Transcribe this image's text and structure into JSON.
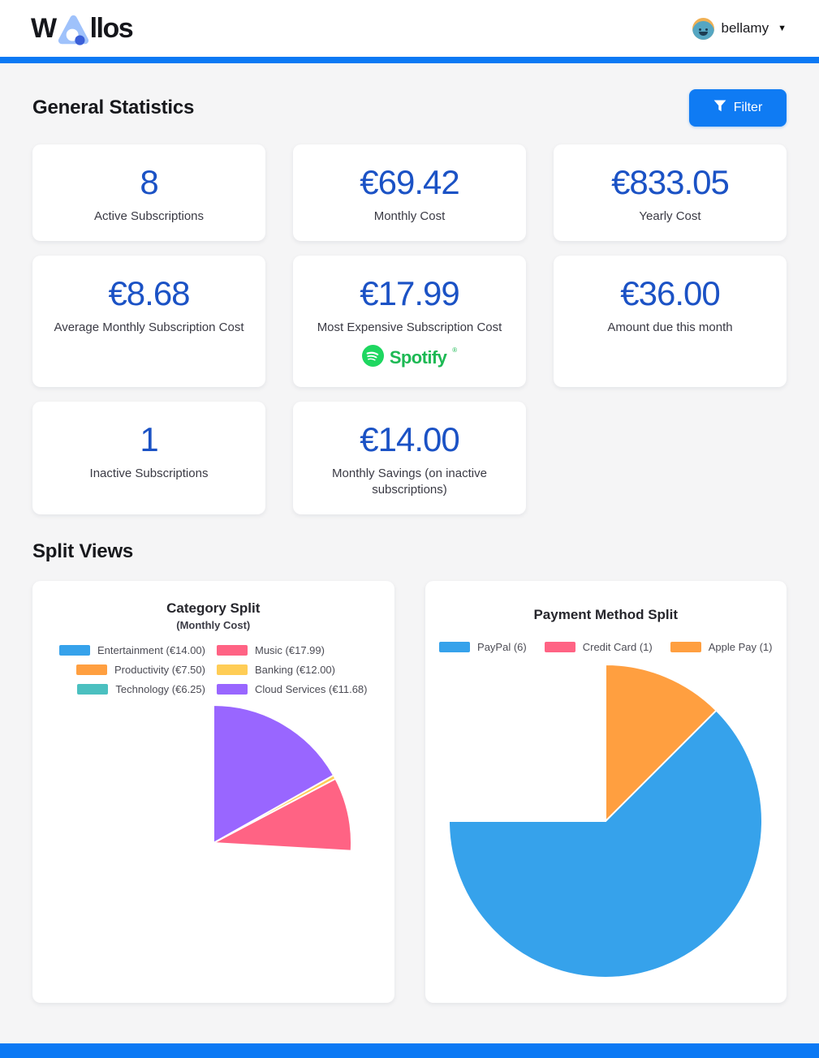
{
  "header": {
    "logo_w": "W",
    "logo_rest": "llos",
    "username": "bellamy",
    "dropdown_icon": "▼"
  },
  "icons": {
    "filter_icon": "funnel-icon",
    "logo_icon": "rounded-triangle-with-dot",
    "avatar_icon": "smiley-face-avatar",
    "spotify_icon": "spotify-circle-logo"
  },
  "colors": {
    "accent_blue": "#0b79f4",
    "stat_value_blue": "#1b52c5",
    "spotify_green": "#1ed760",
    "page_background": "#f5f5f6",
    "card_background": "#ffffff"
  },
  "general_statistics": {
    "title": "General Statistics",
    "filter_label": "Filter",
    "cards": [
      {
        "value": "8",
        "label": "Active Subscriptions"
      },
      {
        "value": "€69.42",
        "label": "Monthly Cost"
      },
      {
        "value": "€833.05",
        "label": "Yearly Cost"
      },
      {
        "value": "€8.68",
        "label": "Average Monthly Subscription Cost"
      },
      {
        "value": "€17.99",
        "label": "Most Expensive Subscription Cost",
        "logo": "Spotify",
        "logo_mark": "®"
      },
      {
        "value": "€36.00",
        "label": "Amount due this month"
      },
      {
        "value": "1",
        "label": "Inactive Subscriptions"
      },
      {
        "value": "€14.00",
        "label": "Monthly Savings (on inactive subscriptions)"
      }
    ]
  },
  "split_views": {
    "title": "Split Views"
  },
  "chart_data": [
    {
      "type": "pie",
      "title": "Category Split",
      "subtitle": "(Monthly Cost)",
      "categories": [
        "Entertainment",
        "Music",
        "Productivity",
        "Banking",
        "Technology",
        "Cloud Services"
      ],
      "values": [
        14.0,
        17.99,
        7.5,
        12.0,
        6.25,
        11.68
      ],
      "labels": [
        "Entertainment (€14.00)",
        "Music (€17.99)",
        "Productivity (€7.50)",
        "Banking (€12.00)",
        "Technology (€6.25)",
        "Cloud Services (€11.68)"
      ],
      "colors": [
        "#36a2eb",
        "#ff6384",
        "#ff9f40",
        "#ffcd56",
        "#4bc0c0",
        "#9966ff"
      ],
      "start_angle_deg": 0,
      "direction": "clockwise",
      "legend_position": "top"
    },
    {
      "type": "pie",
      "title": "Payment Method Split",
      "categories": [
        "PayPal",
        "Credit Card",
        "Apple Pay"
      ],
      "values": [
        6,
        1,
        1
      ],
      "labels": [
        "PayPal (6)",
        "Credit Card (1)",
        "Apple Pay (1)"
      ],
      "colors": [
        "#36a2eb",
        "#ff6384",
        "#ff9f40"
      ],
      "start_angle_deg": 0,
      "direction": "clockwise",
      "legend_position": "top"
    }
  ]
}
